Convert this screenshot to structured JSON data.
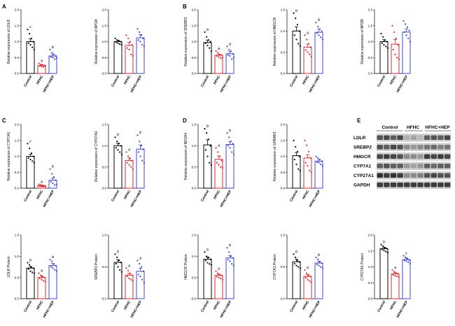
{
  "colors": {
    "control": "#000000",
    "hfhc": "#e8262c",
    "hfhc_hep": "#3b47d6"
  },
  "panel_letters": [
    "A",
    "B",
    "C",
    "D",
    "E"
  ],
  "blot": {
    "groups": [
      "Control",
      "HFHC",
      "HFHC+HEP"
    ],
    "rows": [
      "LDLR",
      "SREBP2",
      "HMGCR",
      "CYP7A1",
      "CYP27A1",
      "GAPDH"
    ]
  },
  "chart_data": [
    {
      "type": "bar",
      "ylabel": "Relative expression of LDLR",
      "categories": [
        "Control",
        "HFHC",
        "HFHC+HEP"
      ],
      "ylim": [
        0,
        2.0
      ],
      "yticks": [
        "0.0",
        "0.5",
        "1.0",
        "1.5",
        "2.0"
      ],
      "values": [
        1.0,
        0.25,
        0.55
      ],
      "errors": [
        0.09,
        0.03,
        0.06
      ],
      "labels": [
        "c",
        "a",
        "b"
      ],
      "points": [
        [
          1.38,
          1.25,
          1.1,
          1.0,
          0.95,
          0.9,
          0.82,
          0.75
        ],
        [
          0.32,
          0.28,
          0.26,
          0.25,
          0.24,
          0.22,
          0.2,
          0.23
        ],
        [
          0.75,
          0.65,
          0.6,
          0.55,
          0.52,
          0.5,
          0.45,
          0.48
        ]
      ]
    },
    {
      "type": "bar",
      "ylabel": "Relative expression of APOA",
      "categories": [
        "Control",
        "HFHC",
        "HFHC+HEP"
      ],
      "ylim": [
        0,
        2.0
      ],
      "yticks": [
        "0.0",
        "0.5",
        "1.0",
        "1.5",
        "2.0"
      ],
      "values": [
        1.0,
        0.88,
        1.12
      ],
      "errors": [
        0.04,
        0.1,
        0.1
      ],
      "labels": [
        "",
        "",
        ""
      ],
      "points": [
        [
          1.1,
          1.05,
          1.02,
          1.0,
          0.98,
          0.95,
          0.92,
          0.9
        ],
        [
          1.2,
          1.1,
          1.0,
          0.9,
          0.8,
          0.75,
          0.6,
          0.55
        ],
        [
          1.4,
          1.3,
          1.2,
          1.1,
          1.05,
          1.0,
          0.9,
          0.85
        ]
      ]
    },
    {
      "type": "bar",
      "ylabel": "Relative expression of SREBP2",
      "categories": [
        "Control",
        "HFHC",
        "HFHC+HEP"
      ],
      "ylim": [
        0,
        2.0
      ],
      "yticks": [
        "0.0",
        "0.5",
        "1.0",
        "1.5",
        "2.0"
      ],
      "values": [
        0.97,
        0.57,
        0.62
      ],
      "errors": [
        0.08,
        0.04,
        0.07
      ],
      "labels": [
        "b",
        "a",
        "a"
      ],
      "points": [
        [
          1.3,
          1.15,
          1.05,
          1.0,
          0.95,
          0.88,
          0.8,
          0.7
        ],
        [
          0.7,
          0.65,
          0.6,
          0.58,
          0.55,
          0.52,
          0.48,
          0.5
        ],
        [
          0.85,
          0.75,
          0.7,
          0.62,
          0.58,
          0.55,
          0.45,
          0.5
        ]
      ]
    },
    {
      "type": "bar",
      "ylabel": "Relative expression of HMGCR",
      "categories": [
        "Control",
        "HFHC",
        "HFHC+HEP"
      ],
      "ylim": [
        0,
        1.5
      ],
      "yticks": [
        "0.0",
        "0.5",
        "1.0",
        "1.5"
      ],
      "values": [
        1.0,
        0.62,
        0.97
      ],
      "errors": [
        0.1,
        0.07,
        0.07
      ],
      "labels": [
        "b",
        "a",
        "b"
      ],
      "points": [
        [
          1.42,
          1.3,
          1.15,
          1.0,
          0.9,
          0.8,
          0.7,
          0.65
        ],
        [
          0.9,
          0.8,
          0.7,
          0.62,
          0.55,
          0.5,
          0.45,
          0.4
        ],
        [
          1.2,
          1.1,
          1.05,
          1.0,
          0.95,
          0.9,
          0.85,
          0.8
        ]
      ]
    },
    {
      "type": "bar",
      "ylabel": "Relative expression of APOB",
      "categories": [
        "Control",
        "HFHC",
        "HFHC+HEP"
      ],
      "ylim": [
        0,
        2.0
      ],
      "yticks": [
        "0.0",
        "0.5",
        "1.0",
        "1.5",
        "2.0"
      ],
      "values": [
        1.0,
        0.92,
        1.3
      ],
      "errors": [
        0.06,
        0.15,
        0.1
      ],
      "labels": [
        "",
        "",
        ""
      ],
      "points": [
        [
          1.25,
          1.15,
          1.05,
          1.0,
          0.95,
          0.9,
          0.85,
          0.8
        ],
        [
          1.5,
          1.3,
          1.1,
          0.9,
          0.75,
          0.6,
          0.5,
          0.45
        ],
        [
          1.65,
          1.55,
          1.45,
          1.35,
          1.3,
          1.2,
          1.1,
          1.0
        ]
      ]
    },
    {
      "type": "bar",
      "ylabel": "Relative expression of CYP7A1",
      "categories": [
        "Control",
        "HFHC",
        "HFHC+HEP"
      ],
      "ylim": [
        0,
        2.0
      ],
      "yticks": [
        "0.0",
        "0.5",
        "1.0",
        "1.5",
        "2.0"
      ],
      "values": [
        1.0,
        0.08,
        0.25
      ],
      "errors": [
        0.06,
        0.02,
        0.07
      ],
      "labels": [
        "c",
        "a",
        "b"
      ],
      "points": [
        [
          1.4,
          1.25,
          1.1,
          1.0,
          0.95,
          0.9,
          0.85,
          0.8
        ],
        [
          0.12,
          0.1,
          0.08,
          0.07,
          0.06,
          0.05,
          0.05,
          0.06
        ],
        [
          0.6,
          0.45,
          0.35,
          0.25,
          0.2,
          0.15,
          0.1,
          0.12
        ]
      ]
    },
    {
      "type": "bar",
      "ylabel": "Relative expression of CYP27A1",
      "categories": [
        "Control",
        "HFHC",
        "HFHC+HEP"
      ],
      "ylim": [
        0,
        1.5
      ],
      "yticks": [
        "0.0",
        "0.5",
        "1.0",
        "1.5"
      ],
      "values": [
        1.0,
        0.65,
        0.92
      ],
      "errors": [
        0.06,
        0.06,
        0.1
      ],
      "labels": [
        "b",
        "a",
        "b"
      ],
      "points": [
        [
          1.2,
          1.1,
          1.05,
          1.0,
          0.95,
          0.9,
          0.85,
          0.8
        ],
        [
          0.85,
          0.75,
          0.7,
          0.65,
          0.6,
          0.55,
          0.5,
          0.45
        ],
        [
          1.25,
          1.1,
          1.0,
          0.92,
          0.85,
          0.75,
          0.65,
          0.6
        ]
      ]
    },
    {
      "type": "bar",
      "ylabel": "Relative expression of NR1H4",
      "categories": [
        "Control",
        "HFHC",
        "HFHC+HEP"
      ],
      "ylim": [
        0,
        1.5
      ],
      "yticks": [
        "0.0",
        "0.5",
        "1.0",
        "1.5"
      ],
      "values": [
        1.02,
        0.68,
        1.03
      ],
      "errors": [
        0.12,
        0.08,
        0.07
      ],
      "labels": [
        "b",
        "a",
        "b"
      ],
      "points": [
        [
          1.4,
          1.3,
          1.15,
          1.0,
          0.9,
          0.75,
          0.6,
          0.55
        ],
        [
          0.95,
          0.85,
          0.75,
          0.65,
          0.6,
          0.55,
          0.5,
          0.48
        ],
        [
          1.3,
          1.2,
          1.1,
          1.05,
          1.0,
          0.95,
          0.85,
          0.8
        ]
      ]
    },
    {
      "type": "bar",
      "ylabel": "Relative expression of GPBAR1",
      "categories": [
        "Control",
        "HFHC",
        "HFHC+HEP"
      ],
      "ylim": [
        0,
        2.0
      ],
      "yticks": [
        "0.0",
        "0.5",
        "1.0",
        "1.5",
        "2.0"
      ],
      "values": [
        1.02,
        0.95,
        0.85
      ],
      "errors": [
        0.1,
        0.1,
        0.05
      ],
      "labels": [
        "",
        "",
        ""
      ],
      "points": [
        [
          1.5,
          1.3,
          1.15,
          1.0,
          0.9,
          0.75,
          0.6,
          0.55
        ],
        [
          1.5,
          1.35,
          1.15,
          0.95,
          0.8,
          0.7,
          0.55,
          0.5
        ],
        [
          1.0,
          0.95,
          0.9,
          0.85,
          0.82,
          0.8,
          0.75,
          0.7
        ]
      ]
    },
    {
      "type": "bar",
      "ylabel": "LDLR Protein",
      "categories": [
        "Control",
        "HFHC",
        "HFHC+HEP"
      ],
      "ylim": [
        0,
        1.5
      ],
      "yticks": [
        "0.0",
        "0.5",
        "1.0",
        "1.5"
      ],
      "values": [
        0.72,
        0.5,
        0.78
      ],
      "errors": [
        0.04,
        0.04,
        0.05
      ],
      "labels": [
        "b",
        "a",
        "b"
      ],
      "points": [
        [
          0.85,
          0.8,
          0.75,
          0.72,
          0.7,
          0.65,
          0.62,
          0.6
        ],
        [
          0.6,
          0.55,
          0.52,
          0.5,
          0.48,
          0.45,
          0.42,
          0.4
        ],
        [
          0.92,
          0.88,
          0.82,
          0.78,
          0.75,
          0.72,
          0.68,
          0.65
        ]
      ]
    },
    {
      "type": "bar",
      "ylabel": "SREBP2 Protein",
      "categories": [
        "Control",
        "HFHC",
        "HFHC+HEP"
      ],
      "ylim": [
        0,
        1.0
      ],
      "yticks": [
        "0.0",
        "0.5",
        "1.0"
      ],
      "values": [
        0.57,
        0.37,
        0.43
      ],
      "errors": [
        0.04,
        0.03,
        0.05
      ],
      "labels": [
        "b",
        "a",
        "a"
      ],
      "points": [
        [
          0.7,
          0.65,
          0.6,
          0.57,
          0.55,
          0.5,
          0.45,
          0.42
        ],
        [
          0.48,
          0.44,
          0.4,
          0.37,
          0.35,
          0.32,
          0.3,
          0.28
        ],
        [
          0.6,
          0.55,
          0.5,
          0.43,
          0.38,
          0.35,
          0.3,
          0.25
        ]
      ]
    },
    {
      "type": "bar",
      "ylabel": "HMGCR Protein",
      "categories": [
        "Control",
        "HFHC",
        "HFHC+HEP"
      ],
      "ylim": [
        0,
        1.5
      ],
      "yticks": [
        "0.0",
        "0.5",
        "1.0",
        "1.5"
      ],
      "values": [
        0.93,
        0.55,
        0.96
      ],
      "errors": [
        0.05,
        0.03,
        0.06
      ],
      "labels": [
        "b",
        "a",
        "b"
      ],
      "points": [
        [
          1.1,
          1.0,
          0.97,
          0.93,
          0.9,
          0.85,
          0.82,
          0.8
        ],
        [
          0.65,
          0.6,
          0.57,
          0.55,
          0.52,
          0.5,
          0.48,
          0.45
        ],
        [
          1.2,
          1.1,
          1.0,
          0.96,
          0.92,
          0.88,
          0.82,
          0.78
        ]
      ]
    },
    {
      "type": "bar",
      "ylabel": "CYP7A1 Protein",
      "categories": [
        "Control",
        "HFHC",
        "HFHC+HEP"
      ],
      "ylim": [
        0,
        1.0
      ],
      "yticks": [
        "0.0",
        "0.5",
        "1.0"
      ],
      "values": [
        0.58,
        0.35,
        0.56
      ],
      "errors": [
        0.04,
        0.03,
        0.03
      ],
      "labels": [
        "b",
        "a",
        "b"
      ],
      "points": [
        [
          0.7,
          0.65,
          0.6,
          0.58,
          0.55,
          0.52,
          0.5,
          0.48
        ],
        [
          0.45,
          0.4,
          0.37,
          0.35,
          0.33,
          0.3,
          0.28,
          0.26
        ],
        [
          0.65,
          0.62,
          0.58,
          0.56,
          0.54,
          0.52,
          0.5,
          0.48
        ]
      ]
    },
    {
      "type": "bar",
      "ylabel": "CYP27A1 Protein",
      "categories": [
        "Control",
        "HFHC",
        "HFHC+HEP"
      ],
      "ylim": [
        0,
        2.0
      ],
      "yticks": [
        "0.0",
        "0.5",
        "1.0",
        "1.5",
        "2.0"
      ],
      "values": [
        1.57,
        0.78,
        1.23
      ],
      "errors": [
        0.05,
        0.04,
        0.05
      ],
      "labels": [
        "b",
        "a",
        "c"
      ],
      "points": [
        [
          1.7,
          1.65,
          1.6,
          1.58,
          1.55,
          1.52,
          1.48,
          1.45
        ],
        [
          0.9,
          0.85,
          0.8,
          0.78,
          0.75,
          0.72,
          0.7,
          0.68
        ],
        [
          1.35,
          1.3,
          1.25,
          1.22,
          1.2,
          1.18,
          1.15,
          1.1
        ]
      ]
    }
  ]
}
